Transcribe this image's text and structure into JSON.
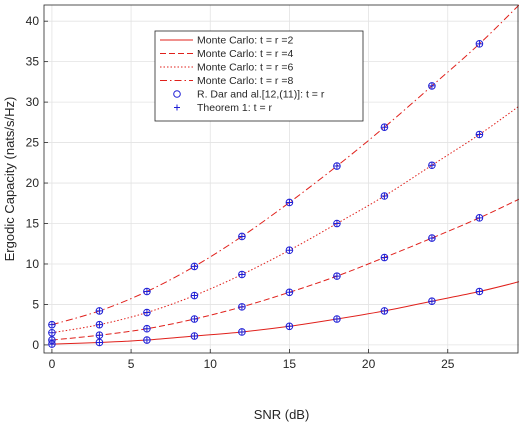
{
  "chart_data": {
    "type": "line",
    "xlabel": "SNR (dB)",
    "ylabel": "Ergodic Capacity (nats/s/Hz)",
    "xlim": [
      -0.5,
      29.5
    ],
    "ylim": [
      -1,
      42
    ],
    "xticks": [
      0,
      5,
      10,
      15,
      20,
      25
    ],
    "yticks": [
      0,
      5,
      10,
      15,
      20,
      25,
      30,
      35,
      40
    ],
    "grid": true,
    "legend_position": "top-center",
    "curve_x": [
      0,
      3,
      6,
      9,
      12,
      15,
      18,
      21,
      24,
      27,
      29.5
    ],
    "series": [
      {
        "name": "Monte Carlo: t = r =2",
        "style": "solid",
        "color": "#e0201b",
        "values": [
          0.1,
          0.3,
          0.6,
          1.1,
          1.6,
          2.3,
          3.2,
          4.2,
          5.4,
          6.6,
          7.8
        ]
      },
      {
        "name": "Monte Carlo: t = r =4",
        "style": "dashed",
        "color": "#e0201b",
        "values": [
          0.6,
          1.2,
          2.0,
          3.2,
          4.7,
          6.5,
          8.5,
          10.8,
          13.2,
          15.7,
          18.0
        ]
      },
      {
        "name": "Monte Carlo: t = r =6",
        "style": "dotted",
        "color": "#e0201b",
        "values": [
          1.5,
          2.5,
          4.0,
          6.1,
          8.7,
          11.7,
          15.0,
          18.4,
          22.2,
          26.0,
          29.5
        ]
      },
      {
        "name": "Monte Carlo: t = r =8",
        "style": "dashdot",
        "color": "#e0201b",
        "values": [
          2.5,
          4.2,
          6.6,
          9.7,
          13.4,
          17.6,
          22.1,
          26.9,
          32.0,
          37.2,
          42.0
        ]
      }
    ],
    "marker_series": [
      {
        "name": "R. Dar and al.[12,(11)]: t = r",
        "marker": "circle",
        "color": "#1f1fd6"
      },
      {
        "name": "Theorem 1: t = r",
        "marker": "plus",
        "color": "#1f1fd6"
      }
    ],
    "marker_x": [
      0,
      3,
      6,
      9,
      12,
      15,
      18,
      21,
      24,
      27
    ]
  }
}
